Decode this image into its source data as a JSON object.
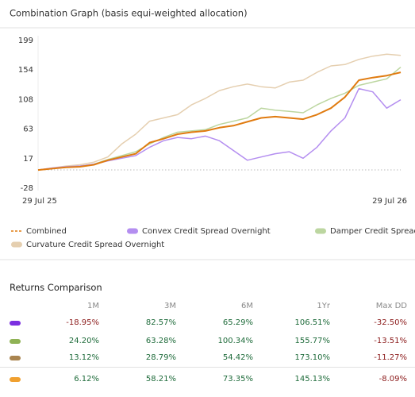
{
  "chart_data": {
    "type": "line",
    "title": "Combination Graph (basis equi-weighted allocation)",
    "categories": [
      "29 Jul 25",
      null,
      null,
      null,
      null,
      null,
      null,
      null,
      null,
      null,
      null,
      null,
      null,
      null,
      null,
      null,
      null,
      null,
      null,
      null,
      null,
      null,
      null,
      null,
      null,
      null,
      "29 Jul 26"
    ],
    "ylim": [
      -28,
      199
    ],
    "yticks": [
      -28,
      17,
      63,
      108,
      154,
      199
    ],
    "grid": false,
    "baseline": 0,
    "series": [
      {
        "name": "Combined",
        "color": "#e07b10",
        "legend_marker": "dashed",
        "values": [
          0,
          2,
          4,
          5,
          8,
          15,
          20,
          25,
          42,
          48,
          55,
          58,
          60,
          65,
          68,
          74,
          80,
          82,
          80,
          78,
          85,
          95,
          112,
          138,
          142,
          145,
          150
        ]
      },
      {
        "name": "Convex Credit Spread Overnight",
        "color": "#b48ef0",
        "legend_marker": "pill",
        "values": [
          0,
          3,
          5,
          6,
          9,
          14,
          18,
          22,
          35,
          45,
          50,
          48,
          52,
          45,
          30,
          15,
          20,
          25,
          28,
          18,
          35,
          60,
          80,
          125,
          120,
          95,
          108
        ]
      },
      {
        "name": "Damper Credit Spread",
        "color": "#bcd6a0",
        "legend_marker": "pill",
        "values": [
          0,
          2,
          4,
          6,
          9,
          16,
          22,
          28,
          40,
          50,
          58,
          60,
          62,
          70,
          75,
          80,
          95,
          92,
          90,
          88,
          100,
          110,
          118,
          130,
          135,
          140,
          158
        ]
      },
      {
        "name": "Curvature Credit Spread Overnight",
        "color": "#e5cfb0",
        "legend_marker": "pill",
        "values": [
          0,
          3,
          6,
          8,
          12,
          20,
          40,
          55,
          75,
          80,
          85,
          100,
          110,
          122,
          128,
          132,
          128,
          126,
          135,
          138,
          150,
          160,
          162,
          170,
          175,
          178,
          176
        ]
      }
    ]
  },
  "table": {
    "title": "Returns Comparison",
    "columns": [
      "1M",
      "3M",
      "6M",
      "1Yr",
      "Max DD"
    ],
    "rows": [
      {
        "color": "#7b2fe0",
        "values": [
          "-18.95%",
          "82.57%",
          "65.29%",
          "106.51%",
          "-32.50%"
        ]
      },
      {
        "color": "#8fb255",
        "values": [
          "24.20%",
          "63.28%",
          "100.34%",
          "155.77%",
          "-13.51%"
        ]
      },
      {
        "color": "#a9844f",
        "values": [
          "13.12%",
          "28.79%",
          "54.42%",
          "173.10%",
          "-11.27%"
        ]
      },
      {
        "color": "#f0a030",
        "values": [
          "6.12%",
          "58.21%",
          "73.35%",
          "145.13%",
          "-8.09%"
        ]
      }
    ]
  }
}
